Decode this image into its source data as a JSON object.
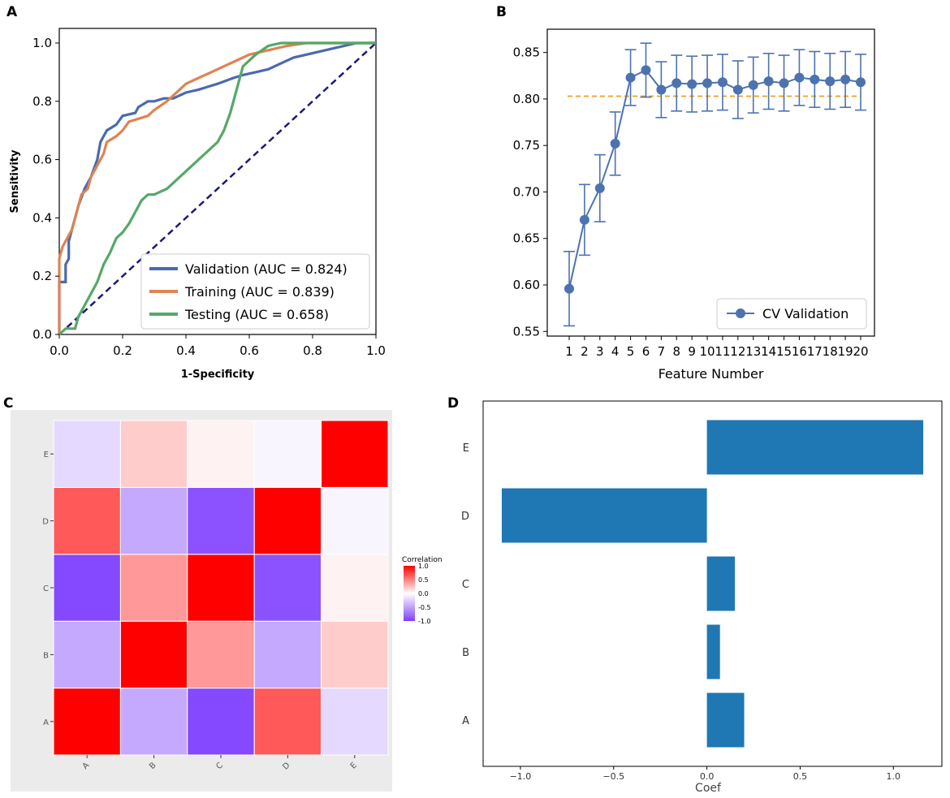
{
  "panels": [
    {
      "letter": "A",
      "chart": 0
    },
    {
      "letter": "B",
      "chart": 1
    },
    {
      "letter": "C",
      "chart": 2
    },
    {
      "letter": "D",
      "chart": 3
    }
  ],
  "colors": {
    "validation": "#4a6aaf",
    "training": "#dd8452",
    "testing": "#55a868",
    "diagonal": "#1a1a7a",
    "cv": "#4c72b0",
    "baseline": "#f0a020",
    "coef_bar": "#1f77b4",
    "corr_pos": "#ff0000",
    "corr_neg": "#7f3fff"
  },
  "chart_data": [
    {
      "type": "line",
      "title": "",
      "xlabel": "1-Specificity",
      "ylabel": "Sensitivity",
      "xlim": [
        0.0,
        1.0
      ],
      "ylim": [
        0.0,
        1.05
      ],
      "xticks": [
        "0.0",
        "0.2",
        "0.4",
        "0.6",
        "0.8",
        "1.0"
      ],
      "yticks": [
        "0.0",
        "0.2",
        "0.4",
        "0.6",
        "0.8",
        "1.0"
      ],
      "legend_position": "bottom-right",
      "reference_line": "diagonal",
      "series": [
        {
          "name": "Validation (AUC = 0.824)",
          "x": [
            0,
            0,
            0.02,
            0.02,
            0.03,
            0.03,
            0.04,
            0.05,
            0.06,
            0.08,
            0.1,
            0.12,
            0.13,
            0.15,
            0.18,
            0.2,
            0.24,
            0.25,
            0.28,
            0.3,
            0.33,
            0.36,
            0.4,
            0.44,
            0.5,
            0.55,
            0.58,
            0.62,
            0.66,
            0.7,
            0.74,
            0.78,
            0.82,
            0.86,
            0.9,
            0.94,
            1.0
          ],
          "y": [
            0,
            0.18,
            0.18,
            0.24,
            0.26,
            0.32,
            0.36,
            0.4,
            0.44,
            0.5,
            0.54,
            0.6,
            0.66,
            0.7,
            0.72,
            0.75,
            0.76,
            0.78,
            0.8,
            0.8,
            0.81,
            0.81,
            0.83,
            0.84,
            0.86,
            0.88,
            0.89,
            0.9,
            0.91,
            0.93,
            0.95,
            0.96,
            0.97,
            0.98,
            0.99,
            1.0,
            1.0
          ]
        },
        {
          "name": "Training (AUC = 0.839)",
          "x": [
            0,
            0,
            0.01,
            0.02,
            0.04,
            0.05,
            0.06,
            0.07,
            0.09,
            0.1,
            0.12,
            0.14,
            0.15,
            0.18,
            0.2,
            0.22,
            0.25,
            0.28,
            0.3,
            0.34,
            0.38,
            0.4,
            0.44,
            0.48,
            0.52,
            0.56,
            0.6,
            0.64,
            0.68,
            0.72,
            0.78,
            0.84,
            0.9,
            1.0
          ],
          "y": [
            0,
            0.26,
            0.3,
            0.32,
            0.36,
            0.4,
            0.44,
            0.48,
            0.5,
            0.54,
            0.58,
            0.62,
            0.66,
            0.68,
            0.7,
            0.73,
            0.74,
            0.75,
            0.77,
            0.8,
            0.84,
            0.86,
            0.88,
            0.9,
            0.92,
            0.94,
            0.96,
            0.97,
            0.98,
            0.99,
            1.0,
            1.0,
            1.0,
            1.0
          ]
        },
        {
          "name": "Testing (AUC = 0.658)",
          "x": [
            0,
            0.02,
            0.05,
            0.06,
            0.08,
            0.1,
            0.12,
            0.14,
            0.16,
            0.18,
            0.2,
            0.22,
            0.24,
            0.26,
            0.28,
            0.3,
            0.34,
            0.36,
            0.4,
            0.44,
            0.48,
            0.5,
            0.52,
            0.54,
            0.56,
            0.58,
            0.62,
            0.66,
            0.7,
            0.8,
            0.9,
            1.0
          ],
          "y": [
            0,
            0.02,
            0.02,
            0.06,
            0.1,
            0.14,
            0.18,
            0.24,
            0.28,
            0.33,
            0.35,
            0.38,
            0.42,
            0.46,
            0.48,
            0.48,
            0.5,
            0.52,
            0.56,
            0.6,
            0.64,
            0.66,
            0.7,
            0.76,
            0.84,
            0.92,
            0.96,
            0.99,
            1.0,
            1.0,
            1.0,
            1.0
          ]
        }
      ]
    },
    {
      "type": "line",
      "title": "",
      "xlabel": "Feature Number",
      "ylabel": "",
      "categories": [
        "1",
        "2",
        "3",
        "4",
        "5",
        "6",
        "7",
        "8",
        "9",
        "10",
        "11",
        "12",
        "13",
        "14",
        "15",
        "16",
        "17",
        "18",
        "19",
        "20"
      ],
      "ylim": [
        0.545,
        0.875
      ],
      "yticks": [
        "0.55",
        "0.60",
        "0.65",
        "0.70",
        "0.75",
        "0.80",
        "0.85"
      ],
      "legend_position": "bottom-right",
      "baseline": 0.803,
      "series": [
        {
          "name": "CV Validation",
          "values": [
            0.596,
            0.67,
            0.704,
            0.752,
            0.823,
            0.831,
            0.81,
            0.817,
            0.816,
            0.817,
            0.818,
            0.81,
            0.815,
            0.819,
            0.817,
            0.823,
            0.821,
            0.819,
            0.821,
            0.818
          ],
          "errors": [
            0.04,
            0.038,
            0.036,
            0.034,
            0.03,
            0.029,
            0.03,
            0.03,
            0.03,
            0.03,
            0.03,
            0.031,
            0.03,
            0.03,
            0.03,
            0.03,
            0.03,
            0.03,
            0.03,
            0.03
          ]
        }
      ]
    },
    {
      "type": "heatmap",
      "title": "",
      "rows": [
        "A",
        "B",
        "C",
        "D",
        "E"
      ],
      "cols": [
        "A",
        "B",
        "C",
        "D",
        "E"
      ],
      "values": [
        [
          1.0,
          -0.45,
          -0.95,
          0.65,
          -0.2
        ],
        [
          -0.45,
          1.0,
          0.4,
          -0.45,
          0.2
        ],
        [
          -0.95,
          0.4,
          1.0,
          -0.9,
          0.05
        ],
        [
          0.65,
          -0.45,
          -0.9,
          1.0,
          -0.05
        ],
        [
          -0.2,
          0.2,
          0.05,
          -0.05,
          1.0
        ]
      ],
      "legend": {
        "title": "Correlation",
        "ticks": [
          "1.0",
          "0.5",
          "0.0",
          "-0.5",
          "-1.0"
        ],
        "range": [
          -1.0,
          1.0
        ]
      }
    },
    {
      "type": "bar",
      "orientation": "horizontal",
      "title": "",
      "xlabel": "Coef",
      "ylabel": "",
      "categories": [
        "A",
        "B",
        "C",
        "D",
        "E"
      ],
      "values": [
        0.2,
        0.07,
        0.15,
        -1.1,
        1.16
      ],
      "xlim": [
        -1.2,
        1.26
      ],
      "xticks": [
        "−1.0",
        "−0.5",
        "0.0",
        "0.5",
        "1.0"
      ]
    }
  ]
}
